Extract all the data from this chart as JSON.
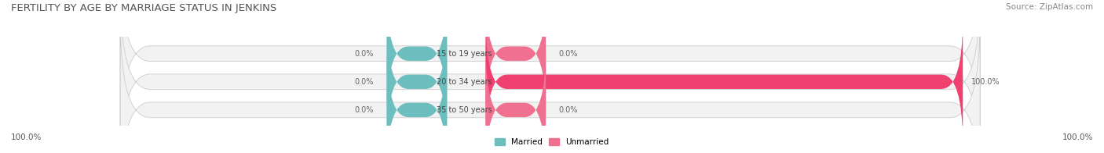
{
  "title": "FERTILITY BY AGE BY MARRIAGE STATUS IN JENKINS",
  "source": "Source: ZipAtlas.com",
  "categories": [
    "15 to 19 years",
    "20 to 34 years",
    "35 to 50 years"
  ],
  "married_values": [
    0.0,
    0.0,
    0.0
  ],
  "unmarried_values": [
    0.0,
    100.0,
    0.0
  ],
  "married_color": "#6dbfbf",
  "unmarried_color": "#f07090",
  "unmarried_color_full": "#f04070",
  "bar_bg_color": "#f2f2f2",
  "bar_border_color": "#cccccc",
  "bottom_left_label": "100.0%",
  "bottom_right_label": "100.0%",
  "married_label": "Married",
  "unmarried_label": "Unmarried",
  "title_fontsize": 9.5,
  "source_fontsize": 7.5,
  "figsize": [
    14.06,
    1.96
  ],
  "dpi": 100
}
